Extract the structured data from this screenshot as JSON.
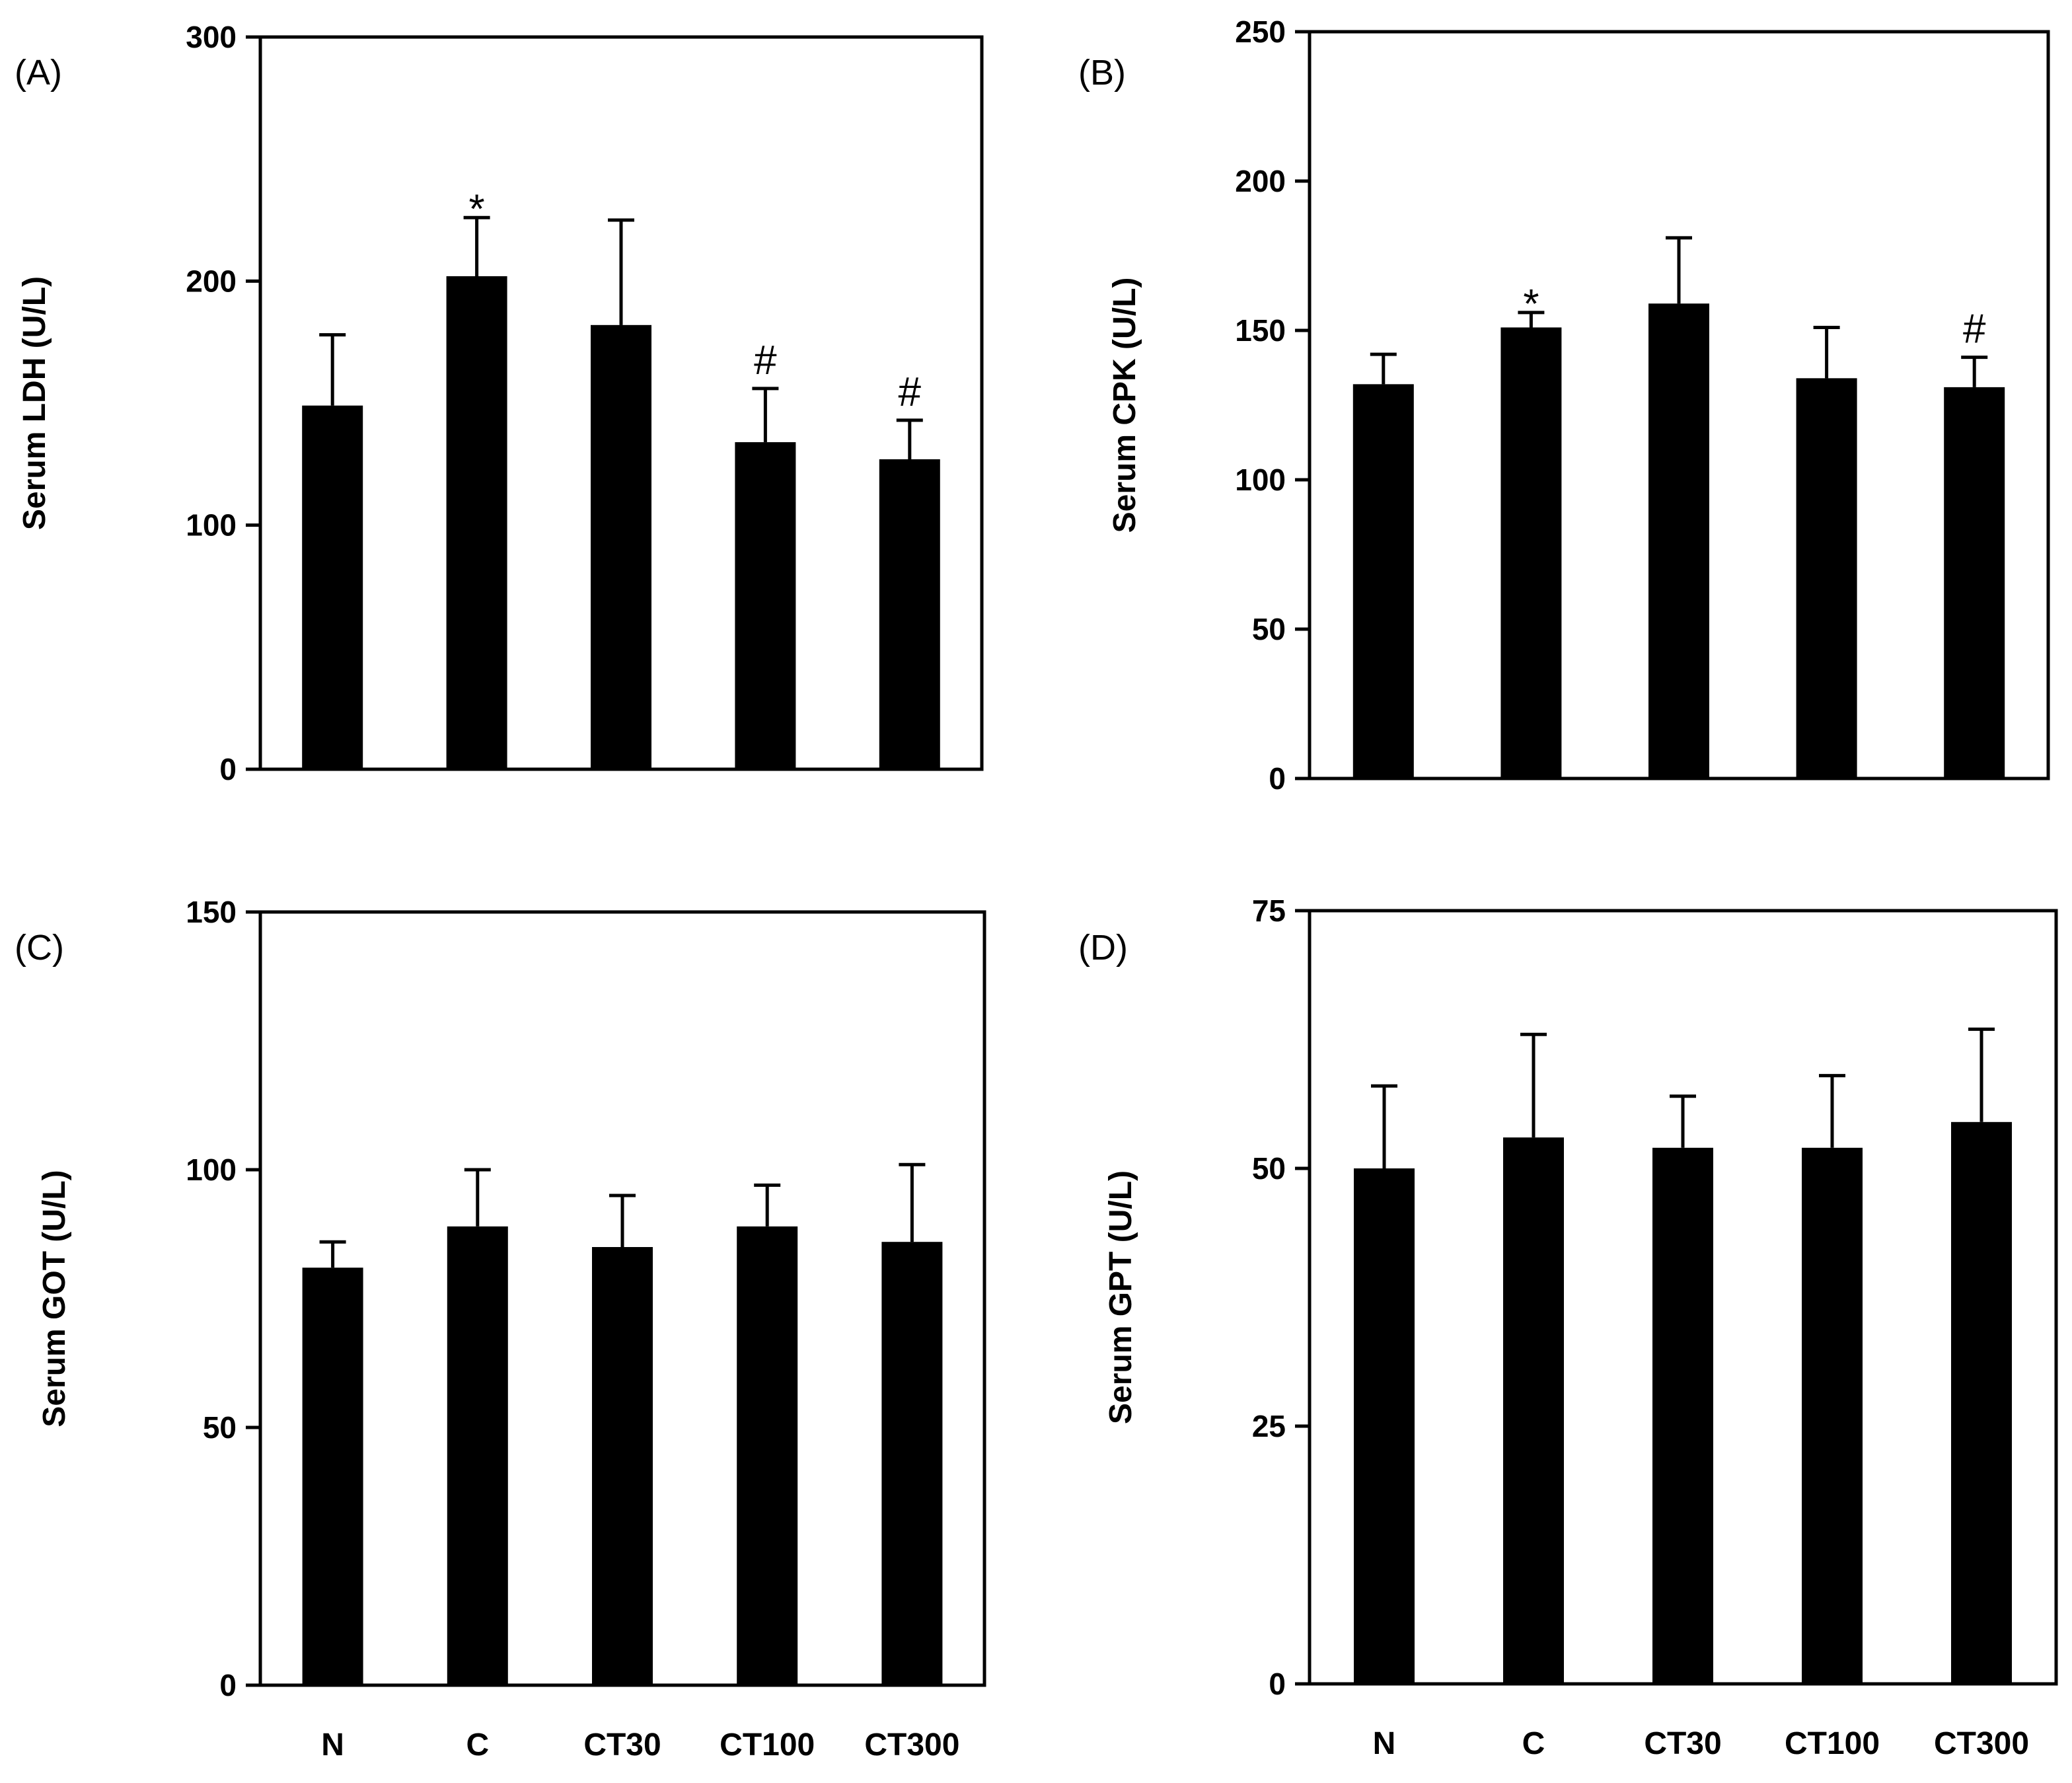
{
  "colors": {
    "bar": "#000000",
    "axis": "#000000",
    "background": "#ffffff"
  },
  "chart_data": [
    {
      "panel": "(A)",
      "type": "bar",
      "ylabel": "Serum LDH (U/L)",
      "ylim": [
        0,
        300
      ],
      "yticks": [
        0,
        100,
        200,
        300
      ],
      "categories": [
        "N",
        "C",
        "CT30",
        "CT100",
        "CT300"
      ],
      "values": [
        149,
        202,
        182,
        134,
        127
      ],
      "errors": [
        29,
        24,
        43,
        22,
        16
      ],
      "significance": [
        "",
        "*",
        "",
        "#",
        "#"
      ],
      "show_xlabels": false
    },
    {
      "panel": "(B)",
      "type": "bar",
      "ylabel": "Serum CPK (U/L)",
      "ylim": [
        0,
        250
      ],
      "yticks": [
        0,
        50,
        100,
        150,
        200,
        250
      ],
      "categories": [
        "N",
        "C",
        "CT30",
        "CT100",
        "CT300"
      ],
      "values": [
        132,
        151,
        159,
        134,
        131
      ],
      "errors": [
        10,
        5,
        22,
        17,
        10
      ],
      "significance": [
        "",
        "*",
        "",
        "",
        "#"
      ],
      "show_xlabels": false
    },
    {
      "panel": "(C)",
      "type": "bar",
      "ylabel": "Serum GOT (U/L)",
      "ylim": [
        0,
        150
      ],
      "yticks": [
        0,
        50,
        100,
        150
      ],
      "categories": [
        "N",
        "C",
        "CT30",
        "CT100",
        "CT300"
      ],
      "values": [
        81,
        89,
        85,
        89,
        86
      ],
      "errors": [
        5,
        11,
        10,
        8,
        15
      ],
      "significance": [
        "",
        "",
        "",
        "",
        ""
      ],
      "show_xlabels": true
    },
    {
      "panel": "(D)",
      "type": "bar",
      "ylabel": "Serum GPT (U/L)",
      "ylim": [
        0,
        75
      ],
      "yticks": [
        0,
        25,
        50,
        75
      ],
      "categories": [
        "N",
        "C",
        "CT30",
        "CT100",
        "CT300"
      ],
      "values": [
        50,
        53,
        52,
        52,
        54.5
      ],
      "errors": [
        8,
        10,
        5,
        7,
        9
      ],
      "significance": [
        "",
        "",
        "",
        "",
        ""
      ],
      "show_xlabels": true
    }
  ]
}
